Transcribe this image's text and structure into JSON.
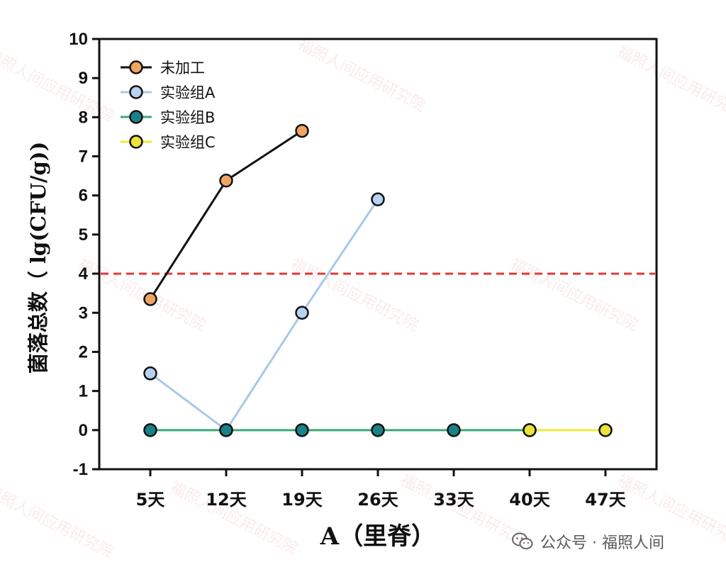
{
  "watermark": "福照人间应用研究院",
  "footer": {
    "text": "公众号 · 福照人间",
    "icon": "wechat-icon"
  },
  "chart_data": {
    "type": "line",
    "title": "",
    "xlabel": "A（里脊）",
    "ylabel": "菌落总数（ lg(CFU/g))",
    "categories": [
      "5天",
      "12天",
      "19天",
      "26天",
      "33天",
      "40天",
      "47天"
    ],
    "ylim": [
      -1,
      10
    ],
    "yticks": [
      -1,
      0,
      1,
      2,
      3,
      4,
      5,
      6,
      7,
      8,
      9,
      10
    ],
    "grid": false,
    "legend_position": "top-left",
    "reference_line": {
      "y": 4,
      "color": "#e03a3a",
      "style": "dashed"
    },
    "series": [
      {
        "name": "未加工",
        "values": [
          3.35,
          6.38,
          7.65,
          null,
          null,
          null,
          null
        ],
        "line_color": "#111111",
        "marker_color": "#f0a462"
      },
      {
        "name": "实验组A",
        "values": [
          1.45,
          0,
          3.0,
          5.9,
          null,
          null,
          null
        ],
        "line_color": "#a8c8ea",
        "marker_color": "#b7d2f0"
      },
      {
        "name": "实验组B",
        "values": [
          0,
          0,
          0,
          0,
          0,
          0,
          null
        ],
        "line_color": "#3aa87a",
        "marker_color": "#16828a"
      },
      {
        "name": "实验组C",
        "values": [
          null,
          null,
          null,
          null,
          null,
          0,
          0
        ],
        "line_color": "#f0ea3a",
        "marker_color": "#ece23a"
      }
    ]
  }
}
